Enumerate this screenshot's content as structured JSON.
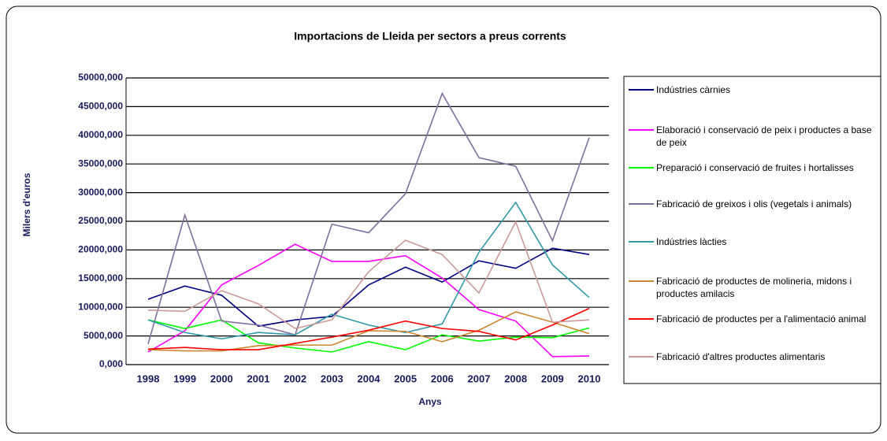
{
  "chart_data": {
    "type": "line",
    "title": "Importacions de Lleida per sectors a preus corrents",
    "x_label": "Anys",
    "y_label": "Milers d'euros",
    "categories": [
      "1998",
      "1999",
      "2000",
      "2001",
      "2002",
      "2003",
      "2004",
      "2005",
      "2006",
      "2007",
      "2008",
      "2009",
      "2010"
    ],
    "ylim": [
      0,
      50000
    ],
    "yticks": [
      {
        "value": 0,
        "label": "0,000"
      },
      {
        "value": 5000,
        "label": "5000,000"
      },
      {
        "value": 10000,
        "label": "10000,000"
      },
      {
        "value": 15000,
        "label": "15000,000"
      },
      {
        "value": 20000,
        "label": "20000,000"
      },
      {
        "value": 25000,
        "label": "25000,000"
      },
      {
        "value": 30000,
        "label": "30000,000"
      },
      {
        "value": 35000,
        "label": "35000,000"
      },
      {
        "value": 40000,
        "label": "40000,000"
      },
      {
        "value": 45000,
        "label": "45000,000"
      },
      {
        "value": 50000,
        "label": "50000,000"
      }
    ],
    "grid": true,
    "series": [
      {
        "name": "Indústries càrnies",
        "color": "#000080",
        "values": [
          11400,
          13700,
          12100,
          6700,
          7800,
          8400,
          13900,
          17000,
          14400,
          18100,
          16800,
          20300,
          19200
        ]
      },
      {
        "name": "Elaboració i conservació de peix i productes a base de peix",
        "color": "#ff00ff",
        "values": [
          2200,
          5900,
          13900,
          17300,
          21000,
          18000,
          18000,
          19000,
          15100,
          9600,
          7600,
          1400,
          1500
        ]
      },
      {
        "name": "Preparació i conservació de fruites i hortalisses",
        "color": "#00ff00",
        "values": [
          7800,
          6300,
          7800,
          3800,
          2900,
          2200,
          4000,
          2600,
          5200,
          4100,
          4800,
          4700,
          6400
        ]
      },
      {
        "name": "Fabricació de greixos i olis (vegetals i animals)",
        "color": "#7f6f9f",
        "values": [
          3600,
          26100,
          7600,
          6900,
          5200,
          24500,
          23000,
          29800,
          47300,
          36100,
          34600,
          21600,
          39600
        ]
      },
      {
        "name": "Indústries làcties",
        "color": "#3399aa",
        "values": [
          7800,
          5600,
          4500,
          5600,
          5200,
          8800,
          6900,
          5600,
          7100,
          19600,
          28300,
          17400,
          11700
        ]
      },
      {
        "name": "Fabricació de productes de molineria, midons i productes amilacis",
        "color": "#cc8833",
        "values": [
          2600,
          2400,
          2400,
          3300,
          3400,
          3400,
          5900,
          5800,
          4000,
          6000,
          9200,
          7400,
          5400
        ]
      },
      {
        "name": "Fabricació de productes per a l'alimentació animal",
        "color": "#ff0000",
        "values": [
          2700,
          3000,
          2600,
          2600,
          3700,
          4800,
          6000,
          7600,
          6300,
          5800,
          4300,
          6900,
          9800
        ]
      },
      {
        "name": "Fabricació d'altres productes alimentaris",
        "color": "#cc9999",
        "values": [
          9500,
          9300,
          12900,
          10600,
          6300,
          7800,
          16200,
          21700,
          19200,
          12500,
          24900,
          7400,
          7800
        ]
      }
    ]
  }
}
